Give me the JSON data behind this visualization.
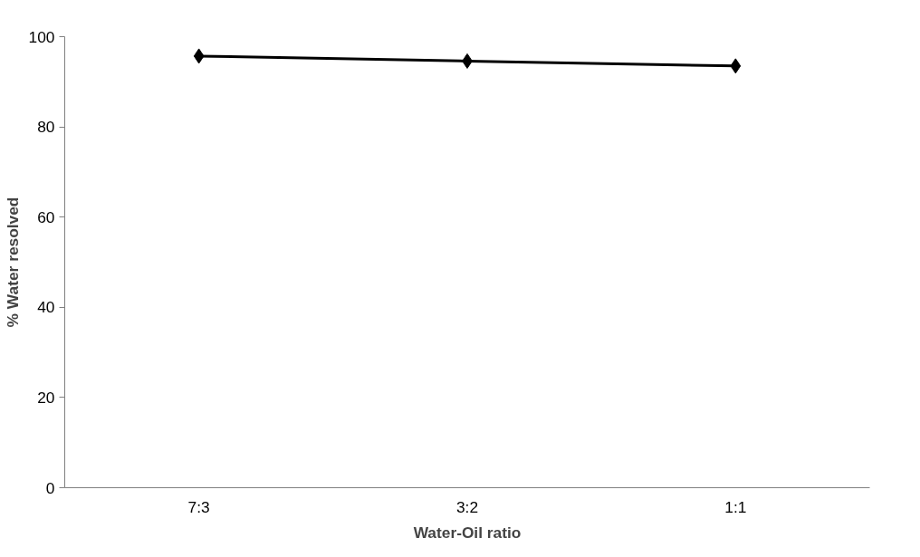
{
  "chart_data": {
    "type": "line",
    "xlabel": "Water-Oil ratio",
    "ylabel": "% Water resolved",
    "categories": [
      "7:3",
      "3:2",
      "1:1"
    ],
    "series": [
      {
        "color": "#000000",
        "values": [
          95.7,
          94.6,
          93.5
        ]
      }
    ],
    "ylim": [
      0,
      100
    ],
    "yticks": [
      0,
      20,
      40,
      60,
      80,
      100
    ],
    "marker": "diamond",
    "line_style": "solid",
    "grid": false
  }
}
